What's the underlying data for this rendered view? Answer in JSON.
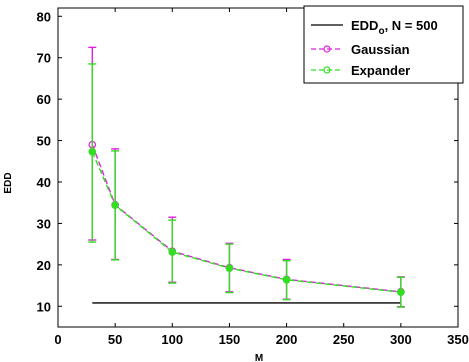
{
  "chart_data": {
    "type": "line",
    "xlabel": "M",
    "ylabel": "EDD",
    "xlim": [
      0,
      350
    ],
    "ylim": [
      5,
      82
    ],
    "xticks": [
      0,
      50,
      100,
      150,
      200,
      250,
      300,
      350
    ],
    "yticks": [
      10,
      20,
      30,
      40,
      50,
      60,
      70,
      80
    ],
    "grid": false,
    "legend_position": "top-right",
    "reference_line": {
      "name_main": "EDD",
      "name_sub": "o",
      "name_suffix": ", N = 500",
      "x": [
        30,
        300
      ],
      "y": 10.8,
      "color": "#000000"
    },
    "series": [
      {
        "name": "Gaussian",
        "color": "#e020e0",
        "marker": "o",
        "style": "dashed",
        "x": [
          30,
          50,
          100,
          150,
          200,
          300
        ],
        "y": [
          49,
          34.5,
          23.3,
          19.3,
          16.5,
          13.5
        ],
        "err_low": [
          26,
          21.3,
          15.8,
          13.5,
          11.7,
          9.9
        ],
        "err_high": [
          72.5,
          48,
          31.5,
          25.2,
          21.3,
          17.1
        ]
      },
      {
        "name": "Expander",
        "color": "#33dd22",
        "marker": "o",
        "style": "dashed",
        "x": [
          30,
          50,
          100,
          150,
          200,
          300
        ],
        "y": [
          47.3,
          34.4,
          23.1,
          19.2,
          16.4,
          13.4
        ],
        "err_low": [
          25.5,
          21.2,
          15.6,
          13.3,
          11.6,
          9.8
        ],
        "err_high": [
          68.5,
          47.5,
          30.8,
          25,
          21,
          17
        ]
      }
    ]
  }
}
